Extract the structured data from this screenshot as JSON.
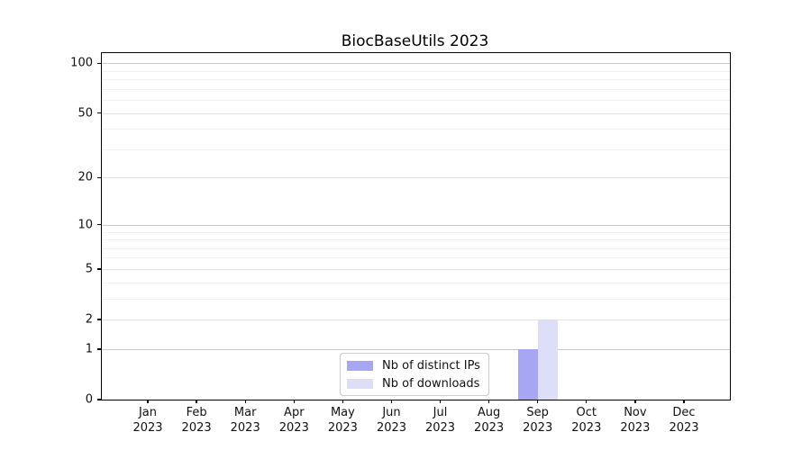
{
  "title": "BiocBaseUtils 2023",
  "chart_data": {
    "type": "bar",
    "title": "BiocBaseUtils 2023",
    "categories": [
      "Jan",
      "Feb",
      "Mar",
      "Apr",
      "May",
      "Jun",
      "Jul",
      "Aug",
      "Sep",
      "Oct",
      "Nov",
      "Dec"
    ],
    "category_year": "2023",
    "series": [
      {
        "name": "Nb of distinct IPs",
        "color": "#a6a6f2",
        "values": [
          0,
          0,
          0,
          0,
          0,
          0,
          0,
          0,
          1,
          0,
          0,
          0
        ]
      },
      {
        "name": "Nb of downloads",
        "color": "#dedef9",
        "values": [
          0,
          0,
          0,
          0,
          0,
          0,
          0,
          0,
          2,
          0,
          0,
          0
        ]
      }
    ],
    "yscale": "log1p",
    "ylim": [
      0,
      115
    ],
    "yticks_labeled": [
      0,
      1,
      2,
      5,
      10,
      20,
      50,
      100
    ],
    "yticks_major": [
      1,
      10,
      100
    ],
    "yticks_minor": [
      3,
      4,
      6,
      7,
      8,
      9,
      30,
      40,
      60,
      70,
      80,
      90
    ],
    "grid": true,
    "legend_position": "inside-bottom-center",
    "xlabel": "",
    "ylabel": ""
  },
  "colors": {
    "distinct_ips": "#a6a6f2",
    "downloads": "#dedef9",
    "axis": "#000000",
    "grid_major": "#c9c9c9",
    "grid_labeled_minor": "#e2e2e2",
    "grid_minor": "#f1f1f1",
    "legend_border": "#cccccc",
    "background": "#ffffff"
  }
}
